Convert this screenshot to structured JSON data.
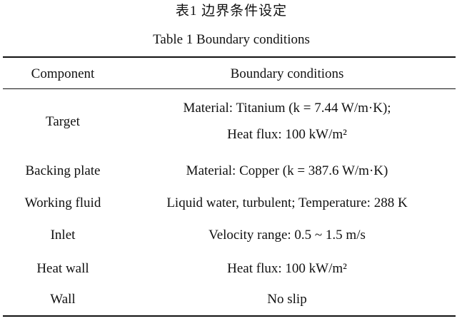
{
  "caption": {
    "chinese": "表1   边界条件设定",
    "english": "Table 1    Boundary conditions"
  },
  "table": {
    "headers": [
      "Component",
      "Boundary conditions"
    ],
    "rows": [
      {
        "component": "Target",
        "conditions": [
          "Material: Titanium (k = 7.44 W/m·K);",
          "Heat flux: 100 kW/m²"
        ]
      },
      {
        "component": "Backing plate",
        "conditions": [
          "Material: Copper (k = 387.6 W/m·K)"
        ]
      },
      {
        "component": "Working fluid",
        "conditions": [
          "Liquid water, turbulent; Temperature: 288 K"
        ]
      },
      {
        "component": "Inlet",
        "conditions": [
          "Velocity range: 0.5 ~ 1.5 m/s"
        ]
      },
      {
        "component": "Heat wall",
        "conditions": [
          "Heat flux: 100 kW/m²"
        ]
      },
      {
        "component": "Wall",
        "conditions": [
          "No slip"
        ]
      }
    ]
  }
}
